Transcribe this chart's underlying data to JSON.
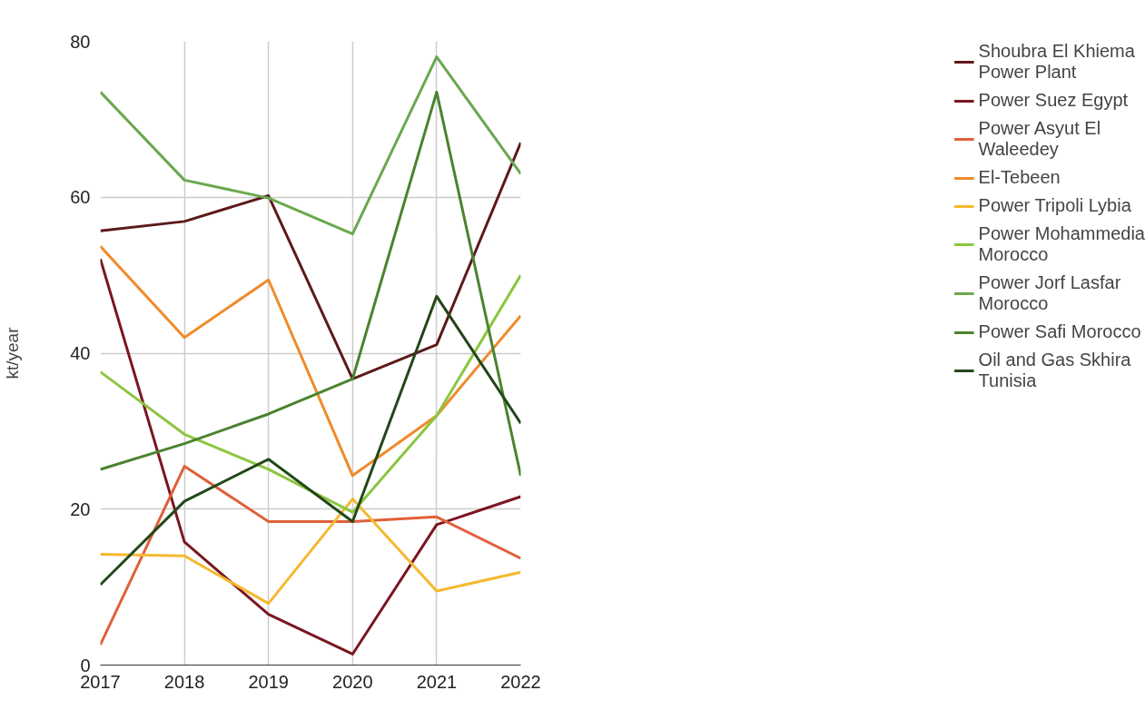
{
  "chart_data": {
    "type": "line",
    "ylabel": "kt/year",
    "x": [
      2017,
      2018,
      2019,
      2020,
      2021,
      2022
    ],
    "xlim": [
      2017,
      2022
    ],
    "xticks": [
      2017,
      2018,
      2019,
      2020,
      2021,
      2022
    ],
    "ylim": [
      0,
      80
    ],
    "yticks": [
      0,
      20,
      40,
      60,
      80
    ],
    "grid": true,
    "legend": "right",
    "marker": "none",
    "line_style": "solid",
    "series": [
      {
        "name": "Shoubra El Khiema Power Plant",
        "color": "#5c1a1b",
        "values": [
          55.7,
          56.9,
          60.2,
          36.7,
          41.1,
          67
        ]
      },
      {
        "name": "Power Suez Egypt",
        "color": "#7a1622",
        "values": [
          52.1,
          15.8,
          6.5,
          1.4,
          18,
          21.6
        ]
      },
      {
        "name": "Power Asyut El Waleedey",
        "color": "#e0603a",
        "values": [
          2.6,
          25.5,
          18.4,
          18.4,
          19,
          13.7
        ]
      },
      {
        "name": "El-Tebeen",
        "color": "#f08a2a",
        "values": [
          53.7,
          42,
          49.4,
          24.3,
          32,
          44.8
        ]
      },
      {
        "name": "Power Tripoli Lybia",
        "color": "#f5b830",
        "values": [
          14.2,
          14,
          7.9,
          21.3,
          9.5,
          11.9
        ]
      },
      {
        "name": "Power Mohammedia Morocco",
        "color": "#8cc63f",
        "values": [
          37.6,
          29.6,
          25.1,
          19.6,
          32,
          50
        ]
      },
      {
        "name": "Power Jorf Lasfar Morocco",
        "color": "#6aa84f",
        "values": [
          73.5,
          62.2,
          59.9,
          55.3,
          78,
          63
        ]
      },
      {
        "name": "Power Safi Morocco",
        "color": "#4a8330",
        "values": [
          25.1,
          28.4,
          32.2,
          36.7,
          73.5,
          24.3
        ]
      },
      {
        "name": "Oil and Gas Skhira Tunisia",
        "color": "#22481a",
        "values": [
          10.3,
          21,
          26.4,
          18.4,
          47.3,
          31
        ]
      }
    ]
  }
}
